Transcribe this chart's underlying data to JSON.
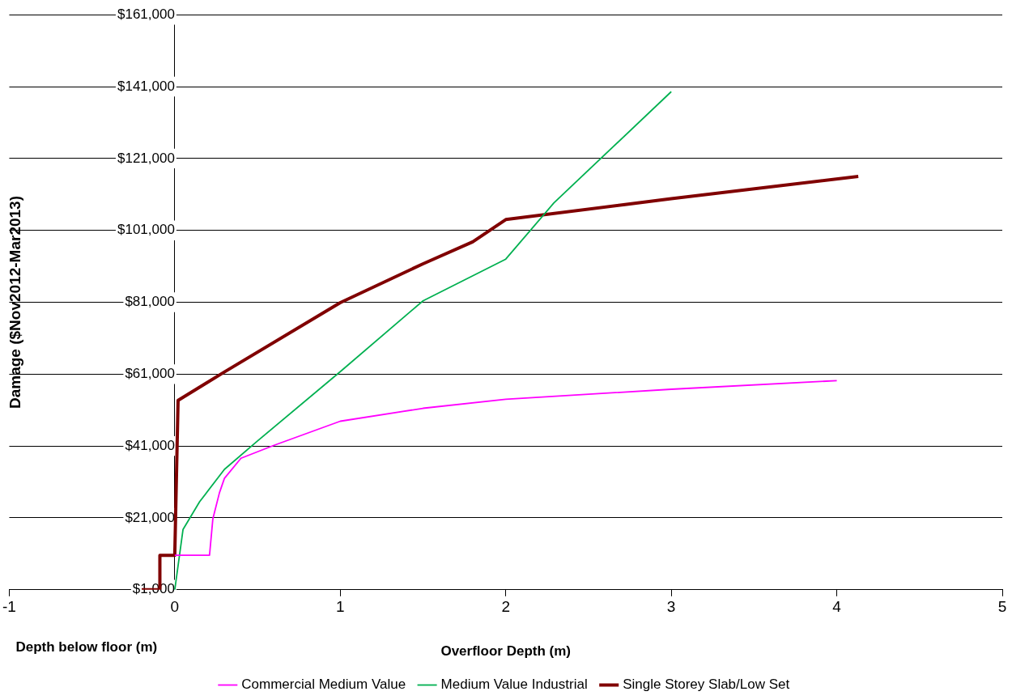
{
  "chart_data": {
    "type": "line",
    "xlabel": "Overfloor Depth (m)",
    "ylabel": "Damage ($Nov2012-Mar2013)",
    "annotations": [
      "Depth below floor (m)"
    ],
    "xlim": [
      -1,
      5
    ],
    "xticks": [
      -1,
      0,
      1,
      2,
      3,
      4,
      5
    ],
    "ylim": [
      1000,
      161000
    ],
    "yticks": [
      {
        "value": 1000,
        "label": "$1,000"
      },
      {
        "value": 21000,
        "label": "$21,000"
      },
      {
        "value": 41000,
        "label": "$41,000"
      },
      {
        "value": 61000,
        "label": "$61,000"
      },
      {
        "value": 81000,
        "label": "$81,000"
      },
      {
        "value": 101000,
        "label": "$101,000"
      },
      {
        "value": 121000,
        "label": "$121,000"
      },
      {
        "value": 141000,
        "label": "$141,000"
      },
      {
        "value": 161000,
        "label": "$161,000"
      }
    ],
    "grid": "y",
    "legend": "bottom",
    "marker": "none",
    "line_style": "solid",
    "series": [
      {
        "name": "Commercial Medium Value",
        "color": "#ff00ff",
        "x": [
          0,
          0.21,
          0.23,
          0.27,
          0.3,
          0.4,
          0.6,
          1,
          1.5,
          2,
          3,
          4
        ],
        "values": [
          10600,
          10600,
          20700,
          28000,
          32000,
          37600,
          41200,
          47900,
          51500,
          54000,
          56800,
          59200
        ]
      },
      {
        "name": "Medium Value Industrial",
        "color": "#00b050",
        "x": [
          0,
          0.05,
          0.15,
          0.3,
          0.5,
          1,
          1.5,
          2,
          2.29,
          3
        ],
        "values": [
          1000,
          17800,
          25500,
          34500,
          42400,
          61700,
          81400,
          93000,
          108600,
          139600
        ]
      },
      {
        "name": "Single Storey Slab/Low Set",
        "color": "#800000",
        "x": [
          -0.2,
          -0.09,
          -0.09,
          0,
          0.02,
          0.3,
          1,
          1.5,
          1.8,
          2,
          3,
          4.13
        ],
        "values": [
          1000,
          1000,
          10600,
          10600,
          53700,
          61600,
          80900,
          91700,
          97800,
          104000,
          109800,
          116000
        ]
      }
    ]
  }
}
